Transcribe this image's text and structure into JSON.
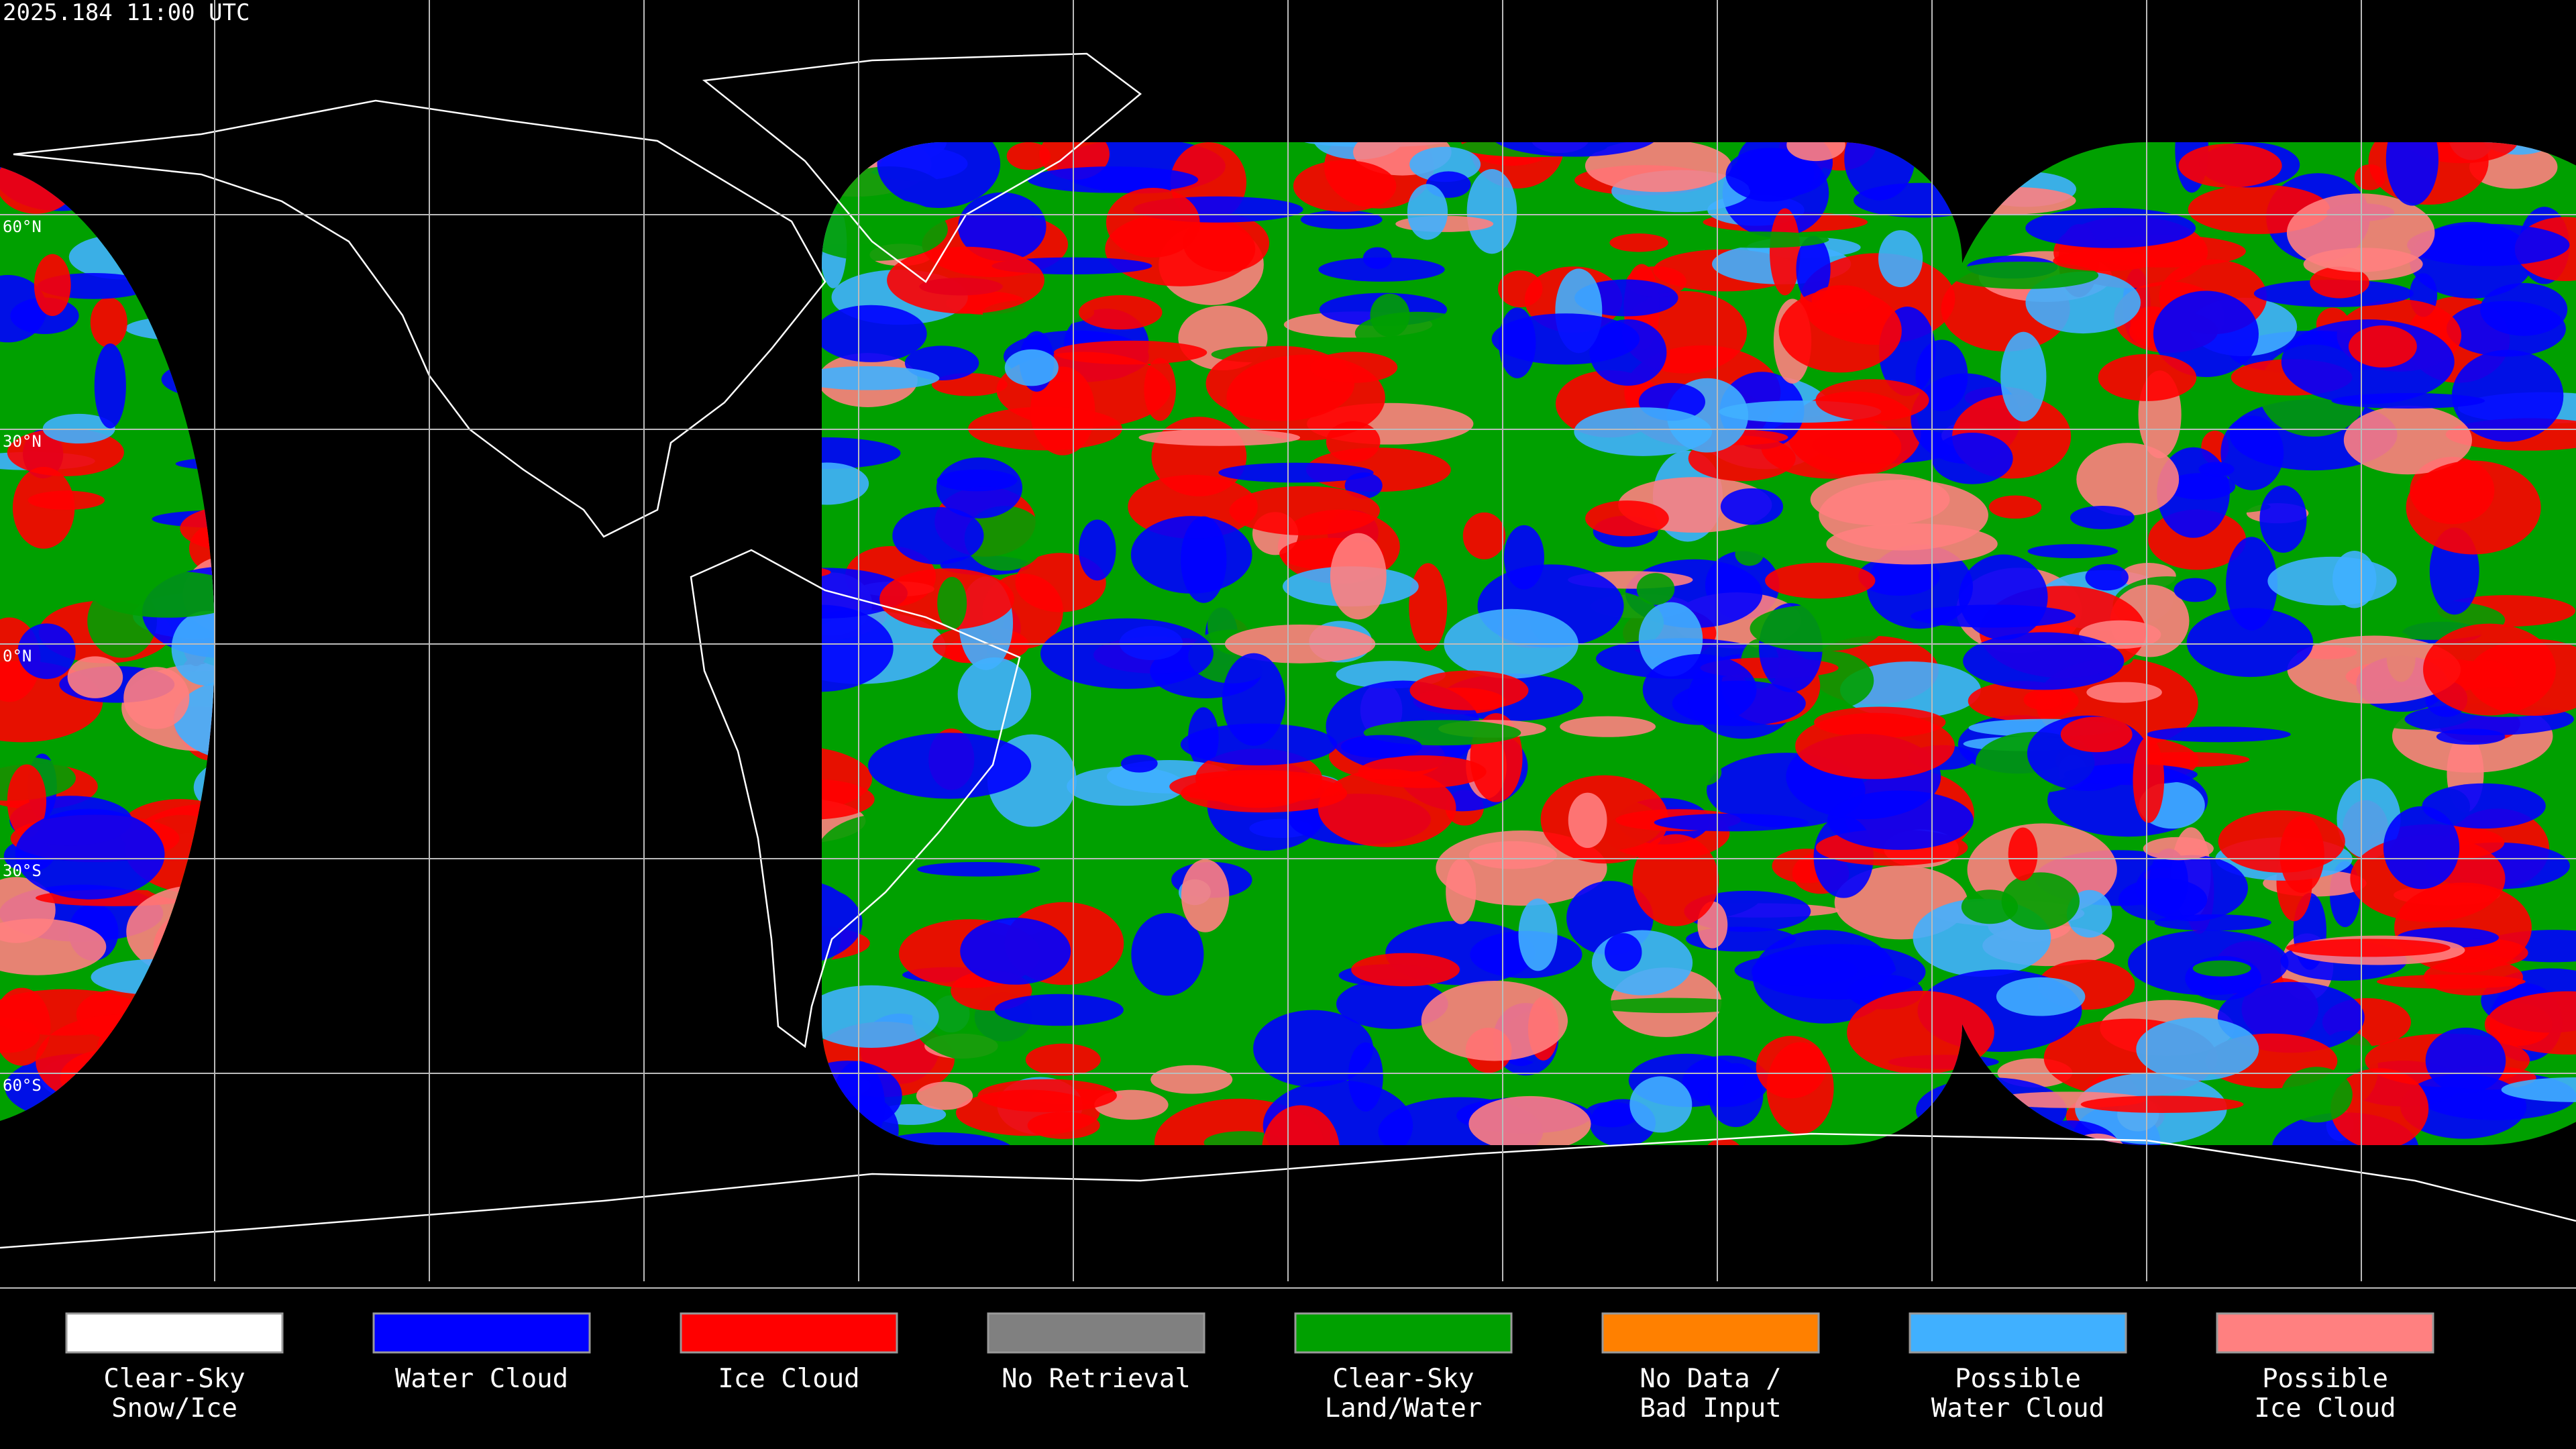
{
  "header": {
    "title": "2025.184 11:00 UTC"
  },
  "map": {
    "lat_labels": [
      "60°N",
      "30°N",
      "0°N",
      "30°S",
      "60°S"
    ]
  },
  "legend": {
    "items": [
      {
        "lines": [
          "Clear-Sky",
          "Snow/Ice"
        ],
        "color": "#ffffff"
      },
      {
        "lines": [
          "Water Cloud"
        ],
        "color": "#0000ff"
      },
      {
        "lines": [
          "Ice Cloud"
        ],
        "color": "#ff0000"
      },
      {
        "lines": [
          "No Retrieval"
        ],
        "color": "#808080"
      },
      {
        "lines": [
          "Clear-Sky",
          "Land/Water"
        ],
        "color": "#00a000"
      },
      {
        "lines": [
          "No Data /",
          "Bad Input"
        ],
        "color": "#ff8000"
      },
      {
        "lines": [
          "Possible",
          "Water Cloud"
        ],
        "color": "#40b0ff"
      },
      {
        "lines": [
          "Possible",
          "Ice Cloud"
        ],
        "color": "#ff8080"
      }
    ]
  }
}
